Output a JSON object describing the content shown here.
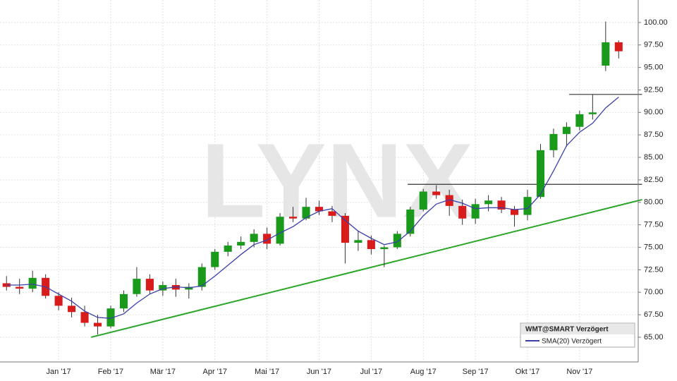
{
  "chart_data": {
    "type": "candlestick",
    "watermark": "LYNX",
    "categories": [
      null,
      null,
      null,
      null,
      "Jan '17",
      null,
      null,
      null,
      "Feb '17",
      null,
      null,
      null,
      "Mär '17",
      null,
      null,
      null,
      "Apr '17",
      null,
      null,
      null,
      "Mai '17",
      null,
      null,
      null,
      "Jun '17",
      null,
      null,
      null,
      "Jul '17",
      null,
      null,
      null,
      "Aug '17",
      null,
      null,
      null,
      "Sep '17",
      null,
      null,
      null,
      "Okt '17",
      null,
      null,
      null,
      "Nov '17",
      null,
      null,
      null
    ],
    "series": [
      {
        "name": "WMT@SMART Verzögert",
        "up_color": "#1a9a1a",
        "down_color": "#d81b1b",
        "open": [
          71.0,
          70.6,
          70.4,
          71.6,
          69.6,
          68.5,
          67.8,
          66.6,
          66.2,
          68.2,
          69.8,
          71.5,
          70.2,
          70.8,
          70.3,
          70.6,
          72.8,
          74.5,
          75.2,
          75.6,
          76.5,
          75.4,
          78.4,
          78.2,
          79.5,
          79.0,
          78.5,
          75.5,
          75.8,
          74.8,
          75.0,
          76.5,
          79.2,
          81.2,
          80.8,
          79.6,
          78.2,
          79.8,
          80.2,
          79.2,
          78.6,
          80.6,
          85.8,
          87.6,
          88.4,
          89.8,
          95.2,
          97.8
        ],
        "high": [
          71.8,
          71.5,
          72.4,
          72.0,
          70.0,
          69.4,
          68.5,
          67.5,
          68.5,
          70.2,
          72.8,
          72.0,
          71.2,
          71.5,
          71.0,
          73.2,
          74.8,
          75.6,
          76.2,
          77.0,
          77.2,
          78.8,
          79.5,
          80.5,
          80.2,
          79.6,
          78.8,
          76.8,
          76.3,
          75.2,
          76.8,
          79.5,
          81.5,
          81.9,
          81.4,
          80.3,
          80.4,
          80.8,
          80.6,
          79.6,
          81.4,
          86.5,
          88.2,
          88.9,
          90.2,
          92.0,
          100.1,
          98.0
        ],
        "low": [
          70.2,
          69.8,
          70.0,
          69.3,
          68.0,
          67.2,
          66.2,
          65.3,
          66.0,
          67.8,
          69.5,
          69.8,
          69.6,
          69.5,
          69.3,
          70.2,
          72.5,
          74.0,
          74.8,
          75.0,
          74.8,
          75.2,
          77.8,
          78.0,
          78.6,
          77.8,
          73.2,
          74.6,
          74.2,
          72.8,
          74.8,
          76.2,
          79.0,
          80.4,
          78.5,
          77.5,
          77.6,
          79.0,
          78.8,
          77.3,
          78.0,
          80.4,
          85.0,
          86.2,
          88.0,
          89.2,
          94.6,
          96.0
        ],
        "close": [
          70.6,
          70.4,
          71.6,
          69.6,
          68.5,
          67.8,
          66.6,
          66.2,
          68.2,
          69.8,
          71.5,
          70.2,
          70.8,
          70.3,
          70.6,
          72.8,
          74.5,
          75.2,
          75.6,
          76.5,
          75.4,
          78.4,
          78.2,
          79.5,
          79.0,
          78.5,
          75.5,
          75.8,
          74.8,
          75.0,
          76.5,
          79.2,
          81.2,
          80.8,
          79.6,
          78.2,
          79.8,
          80.2,
          79.2,
          78.6,
          80.6,
          85.8,
          87.6,
          88.4,
          89.8,
          90.0,
          97.8,
          96.8
        ]
      },
      {
        "name": "SMA(20) Verzögert",
        "color": "#3b3fa8",
        "values": [
          70.8,
          70.8,
          70.9,
          70.6,
          69.8,
          69.0,
          67.9,
          67.2,
          67.1,
          67.6,
          68.8,
          69.8,
          70.4,
          70.6,
          70.5,
          70.7,
          71.8,
          73.0,
          74.2,
          75.3,
          75.8,
          76.6,
          77.3,
          78.3,
          79.0,
          79.3,
          78.0,
          76.8,
          76.0,
          75.3,
          75.6,
          76.8,
          78.5,
          79.8,
          80.3,
          79.9,
          79.3,
          79.4,
          79.4,
          79.2,
          79.3,
          80.9,
          83.5,
          86.3,
          87.8,
          88.8,
          90.5,
          91.7
        ]
      }
    ],
    "lines": [
      {
        "color": "#2aa52a",
        "from": [
          6.5,
          65.0
        ],
        "to": [
          48.8,
          80.3
        ]
      },
      {
        "color": "#333333",
        "from": [
          43.2,
          92.0
        ],
        "to": [
          48.8,
          92.0
        ]
      },
      {
        "color": "#333333",
        "from": [
          30.8,
          82.0
        ],
        "to": [
          48.8,
          82.0
        ]
      }
    ],
    "ylim": [
      62.25,
      102.5
    ],
    "yticks": [
      {
        "value": 65,
        "label": "65.00"
      },
      {
        "value": 67.5,
        "label": "67.50"
      },
      {
        "value": 70,
        "label": "70.00"
      },
      {
        "value": 72.5,
        "label": "72.50"
      },
      {
        "value": 75,
        "label": "75.00"
      },
      {
        "value": 77.5,
        "label": "77.50"
      },
      {
        "value": 80,
        "label": "80.00"
      },
      {
        "value": 82.5,
        "label": "82.50"
      },
      {
        "value": 85,
        "label": "85.00"
      },
      {
        "value": 87.5,
        "label": "87.50"
      },
      {
        "value": 90,
        "label": "90.00"
      },
      {
        "value": 92.5,
        "label": "92.50"
      },
      {
        "value": 95,
        "label": "95.00"
      },
      {
        "value": 97.5,
        "label": "97.50"
      },
      {
        "value": 100,
        "label": "100.00"
      }
    ],
    "grid": true,
    "legend": "bottom-right"
  }
}
